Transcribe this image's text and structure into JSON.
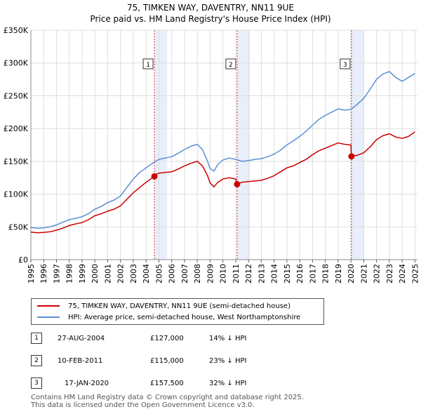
{
  "chart_data": {
    "type": "line",
    "title": "75, TIMKEN WAY, DAVENTRY, NN11 9UE",
    "subtitle": "Price paid vs. HM Land Registry's House Price Index (HPI)",
    "xlabel": "",
    "ylabel": "",
    "xlim": [
      1995.0,
      2025.2
    ],
    "ylim": [
      0,
      350000
    ],
    "y_ticks": [
      0,
      50000,
      100000,
      150000,
      200000,
      250000,
      300000,
      350000
    ],
    "y_tick_labels": [
      "£0",
      "£50K",
      "£100K",
      "£150K",
      "£200K",
      "£250K",
      "£300K",
      "£350K"
    ],
    "x_ticks": [
      1995,
      1996,
      1997,
      1998,
      1999,
      2000,
      2001,
      2002,
      2003,
      2004,
      2005,
      2006,
      2007,
      2008,
      2009,
      2010,
      2011,
      2012,
      2013,
      2014,
      2015,
      2016,
      2017,
      2018,
      2019,
      2020,
      2021,
      2022,
      2023,
      2024,
      2025
    ],
    "x_tick_labels": [
      "1995",
      "1996",
      "1997",
      "1998",
      "1999",
      "2000",
      "2001",
      "2002",
      "2003",
      "2004",
      "2005",
      "2006",
      "2007",
      "2008",
      "2009",
      "2010",
      "2011",
      "2012",
      "2013",
      "2014",
      "2015",
      "2016",
      "2017",
      "2018",
      "2019",
      "2020",
      "2021",
      "2022",
      "2023",
      "2024",
      "2025"
    ],
    "grid": true,
    "series": [
      {
        "name": "75, TIMKEN WAY, DAVENTRY, NN11 9UE (semi-detached house)",
        "color": "#cc0000",
        "x": [
          1995.0,
          1995.5,
          1996.0,
          1996.5,
          1997.0,
          1997.5,
          1998.0,
          1998.5,
          1999.0,
          1999.5,
          2000.0,
          2000.5,
          2001.0,
          2001.5,
          2002.0,
          2002.5,
          2003.0,
          2003.5,
          2004.0,
          2004.5,
          2004.65,
          2004.66,
          2005.0,
          2005.5,
          2006.0,
          2006.5,
          2007.0,
          2007.5,
          2008.0,
          2008.4,
          2008.8,
          2009.0,
          2009.3,
          2009.6,
          2010.0,
          2010.5,
          2011.0,
          2011.11,
          2011.12,
          2011.5,
          2012.0,
          2012.5,
          2013.0,
          2013.5,
          2014.0,
          2014.5,
          2015.0,
          2015.5,
          2016.0,
          2016.5,
          2017.0,
          2017.5,
          2018.0,
          2018.5,
          2019.0,
          2019.5,
          2020.0,
          2020.04,
          2020.05,
          2020.5,
          2021.0,
          2021.5,
          2022.0,
          2022.5,
          2023.0,
          2023.5,
          2024.0,
          2024.5,
          2025.0
        ],
        "y": [
          42000,
          41000,
          41500,
          42500,
          45000,
          48000,
          52000,
          54500,
          56500,
          61000,
          67000,
          70000,
          74000,
          77000,
          82000,
          92000,
          102000,
          110000,
          118000,
          125000,
          127000,
          129000,
          132000,
          133000,
          134000,
          138000,
          143000,
          147000,
          150000,
          143000,
          128000,
          117000,
          111000,
          118000,
          123000,
          125000,
          123000,
          115000,
          116000,
          118000,
          119000,
          120000,
          121000,
          124000,
          128000,
          134000,
          140000,
          143000,
          148000,
          153000,
          160000,
          166000,
          170000,
          174000,
          178000,
          176000,
          175000,
          157500,
          158500,
          159000,
          163000,
          172000,
          183000,
          189000,
          192000,
          187000,
          185000,
          188000,
          195000
        ]
      },
      {
        "name": "HPI: Average price, semi-detached house, West Northamptonshire",
        "color": "#5b8fd4",
        "x": [
          1995.0,
          1995.5,
          1996.0,
          1996.5,
          1997.0,
          1997.5,
          1998.0,
          1998.5,
          1999.0,
          1999.5,
          2000.0,
          2000.5,
          2001.0,
          2001.5,
          2002.0,
          2002.5,
          2003.0,
          2003.5,
          2004.0,
          2004.5,
          2005.0,
          2005.5,
          2006.0,
          2006.5,
          2007.0,
          2007.5,
          2008.0,
          2008.4,
          2008.8,
          2009.0,
          2009.3,
          2009.6,
          2010.0,
          2010.5,
          2011.0,
          2011.5,
          2012.0,
          2012.5,
          2013.0,
          2013.5,
          2014.0,
          2014.5,
          2015.0,
          2015.5,
          2016.0,
          2016.5,
          2017.0,
          2017.5,
          2018.0,
          2018.5,
          2019.0,
          2019.5,
          2020.0,
          2020.5,
          2021.0,
          2021.5,
          2022.0,
          2022.5,
          2023.0,
          2023.5,
          2024.0,
          2024.5,
          2025.0
        ],
        "y": [
          49000,
          48000,
          48500,
          50000,
          53000,
          57000,
          61000,
          63000,
          65500,
          70000,
          77000,
          81000,
          87000,
          91000,
          97000,
          110000,
          123000,
          133000,
          140000,
          147000,
          153000,
          155000,
          157000,
          162000,
          168000,
          173000,
          176000,
          168000,
          150000,
          139000,
          135000,
          145000,
          152000,
          155000,
          153000,
          150000,
          151000,
          153000,
          154000,
          157000,
          161000,
          167000,
          175000,
          181000,
          188000,
          196000,
          205000,
          214000,
          220000,
          225000,
          230000,
          228000,
          229000,
          237000,
          246000,
          260000,
          275000,
          283000,
          287000,
          278000,
          272000,
          278000,
          284000
        ]
      }
    ],
    "sales": [
      {
        "marker": "1",
        "x": 2004.65,
        "y": 127000
      },
      {
        "marker": "2",
        "x": 2011.11,
        "y": 115000
      },
      {
        "marker": "3",
        "x": 2020.04,
        "y": 157500
      }
    ]
  },
  "legend": {
    "items": [
      {
        "label": "75, TIMKEN WAY, DAVENTRY, NN11 9UE (semi-detached house)",
        "color": "#cc0000"
      },
      {
        "label": "HPI: Average price, semi-detached house, West Northamptonshire",
        "color": "#5b8fd4"
      }
    ]
  },
  "sales_table": [
    {
      "num": "1",
      "date": "27-AUG-2004",
      "price": "£127,000",
      "hpi": "14% ↓ HPI"
    },
    {
      "num": "2",
      "date": "10-FEB-2011",
      "price": "£115,000",
      "hpi": "23% ↓ HPI"
    },
    {
      "num": "3",
      "date": "17-JAN-2020",
      "price": "£157,500",
      "hpi": "32% ↓ HPI"
    }
  ],
  "footer": {
    "line1": "Contains HM Land Registry data © Crown copyright and database right 2025.",
    "line2": "This data is licensed under the Open Government Licence v3.0."
  }
}
